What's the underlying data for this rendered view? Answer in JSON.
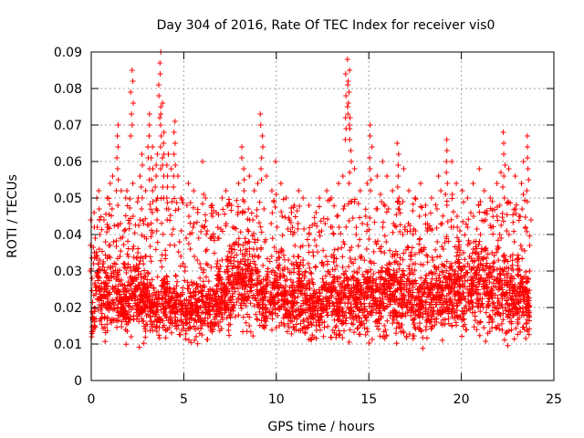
{
  "chart_data": {
    "type": "scatter",
    "title": "Day 304 of 2016, Rate Of TEC Index for receiver vis0",
    "xlabel": "GPS time / hours",
    "ylabel": "ROTI / TECUs",
    "xlim": [
      0,
      25
    ],
    "ylim": [
      0,
      0.09
    ],
    "xticks": [
      "0",
      "5",
      "10",
      "15",
      "20",
      "25"
    ],
    "yticks": [
      "0",
      "0.01",
      "0.02",
      "0.03",
      "0.04",
      "0.05",
      "0.06",
      "0.07",
      "0.08",
      "0.09"
    ],
    "grid": true,
    "marker": "+",
    "color": "#ff0000",
    "data_range_x": [
      0,
      23.7
    ],
    "series": [
      {
        "name": "ROTI",
        "x": [
          0.0,
          0.1,
          0.2,
          0.3,
          0.4,
          0.5,
          0.7,
          0.9,
          1.0,
          1.2,
          1.4,
          1.6,
          1.8,
          2.0,
          2.2,
          2.3,
          2.5,
          2.7,
          2.9,
          3.1,
          3.3,
          3.5,
          3.7,
          3.8,
          3.9,
          4.1,
          4.3,
          4.5,
          4.7,
          4.9,
          5.1,
          5.3,
          5.5,
          5.8,
          6.0,
          6.2,
          6.5,
          6.8,
          7.0,
          7.3,
          7.6,
          7.9,
          8.2,
          8.5,
          8.8,
          9.0,
          9.2,
          9.4,
          9.7,
          10.0,
          10.3,
          10.6,
          10.9,
          11.2,
          11.5,
          11.8,
          12.1,
          12.4,
          12.7,
          13.0,
          13.3,
          13.6,
          13.8,
          13.9,
          14.0,
          14.3,
          14.6,
          14.9,
          15.1,
          15.4,
          15.7,
          16.0,
          16.3,
          16.6,
          16.9,
          17.2,
          17.5,
          17.8,
          18.1,
          18.4,
          18.7,
          18.9,
          19.2,
          19.5,
          19.8,
          20.1,
          20.4,
          20.7,
          21.0,
          21.3,
          21.6,
          21.9,
          22.1,
          22.3,
          22.6,
          22.9,
          23.2,
          23.4,
          23.6,
          23.7
        ],
        "upper": [
          0.044,
          0.042,
          0.046,
          0.05,
          0.052,
          0.047,
          0.044,
          0.05,
          0.054,
          0.056,
          0.07,
          0.052,
          0.05,
          0.052,
          0.085,
          0.054,
          0.05,
          0.062,
          0.052,
          0.073,
          0.064,
          0.062,
          0.09,
          0.076,
          0.068,
          0.062,
          0.058,
          0.071,
          0.056,
          0.05,
          0.048,
          0.054,
          0.052,
          0.046,
          0.06,
          0.05,
          0.048,
          0.046,
          0.05,
          0.052,
          0.048,
          0.054,
          0.064,
          0.056,
          0.052,
          0.054,
          0.073,
          0.056,
          0.052,
          0.06,
          0.054,
          0.05,
          0.048,
          0.052,
          0.05,
          0.048,
          0.046,
          0.05,
          0.052,
          0.05,
          0.054,
          0.056,
          0.084,
          0.088,
          0.072,
          0.058,
          0.052,
          0.054,
          0.07,
          0.056,
          0.06,
          0.056,
          0.052,
          0.065,
          0.058,
          0.052,
          0.05,
          0.054,
          0.048,
          0.05,
          0.056,
          0.052,
          0.066,
          0.06,
          0.054,
          0.052,
          0.05,
          0.054,
          0.058,
          0.052,
          0.05,
          0.054,
          0.057,
          0.068,
          0.058,
          0.056,
          0.054,
          0.06,
          0.067,
          0.044
        ],
        "mean": [
          0.018,
          0.016,
          0.02,
          0.022,
          0.024,
          0.021,
          0.02,
          0.022,
          0.025,
          0.024,
          0.022,
          0.02,
          0.019,
          0.021,
          0.022,
          0.024,
          0.023,
          0.022,
          0.02,
          0.021,
          0.019,
          0.018,
          0.02,
          0.022,
          0.021,
          0.02,
          0.018,
          0.019,
          0.02,
          0.018,
          0.017,
          0.019,
          0.018,
          0.02,
          0.021,
          0.02,
          0.019,
          0.02,
          0.021,
          0.022,
          0.024,
          0.025,
          0.026,
          0.025,
          0.024,
          0.023,
          0.022,
          0.021,
          0.022,
          0.023,
          0.022,
          0.021,
          0.02,
          0.022,
          0.021,
          0.02,
          0.019,
          0.02,
          0.021,
          0.022,
          0.021,
          0.02,
          0.022,
          0.023,
          0.022,
          0.021,
          0.02,
          0.021,
          0.022,
          0.021,
          0.022,
          0.023,
          0.022,
          0.021,
          0.022,
          0.021,
          0.02,
          0.021,
          0.022,
          0.021,
          0.022,
          0.021,
          0.022,
          0.023,
          0.024,
          0.023,
          0.022,
          0.024,
          0.025,
          0.024,
          0.023,
          0.022,
          0.023,
          0.024,
          0.023,
          0.022,
          0.022,
          0.021,
          0.02,
          0.018
        ],
        "floor": 0.003
      }
    ]
  }
}
